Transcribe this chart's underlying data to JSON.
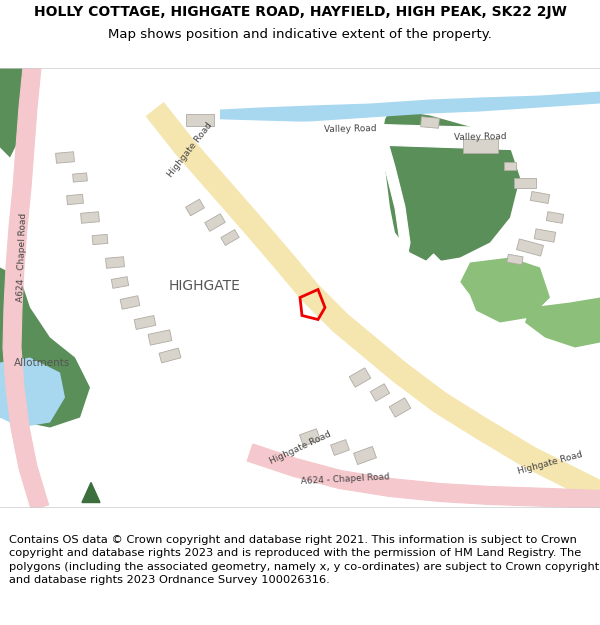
{
  "title_line1": "HOLLY COTTAGE, HIGHGATE ROAD, HAYFIELD, HIGH PEAK, SK22 2JW",
  "title_line2": "Map shows position and indicative extent of the property.",
  "footer_text": "Contains OS data © Crown copyright and database right 2021. This information is subject to Crown copyright and database rights 2023 and is reproduced with the permission of HM Land Registry. The polygons (including the associated geometry, namely x, y co-ordinates) are subject to Crown copyright and database rights 2023 Ordnance Survey 100026316.",
  "bg_color": "#ffffff",
  "map_bg": "#f5f5f2",
  "header_bg": "#ffffff",
  "footer_bg": "#ffffff",
  "road_yellow": "#f5e6b0",
  "road_yellow_border": "#d4a800",
  "road_pink": "#f4c8cc",
  "road_pink_border": "#e0a0a8",
  "road_white": "#ffffff",
  "road_gray_border": "#bbbbbb",
  "water_color": "#a8d8f0",
  "green_dark": "#5a8f5a",
  "green_light": "#8bbf7a",
  "green_pale": "#b8d4a0",
  "property_red": "#ee0000",
  "marker_green": "#3d6e3d",
  "title_fontsize": 10,
  "subtitle_fontsize": 9.5,
  "footer_fontsize": 8.2
}
